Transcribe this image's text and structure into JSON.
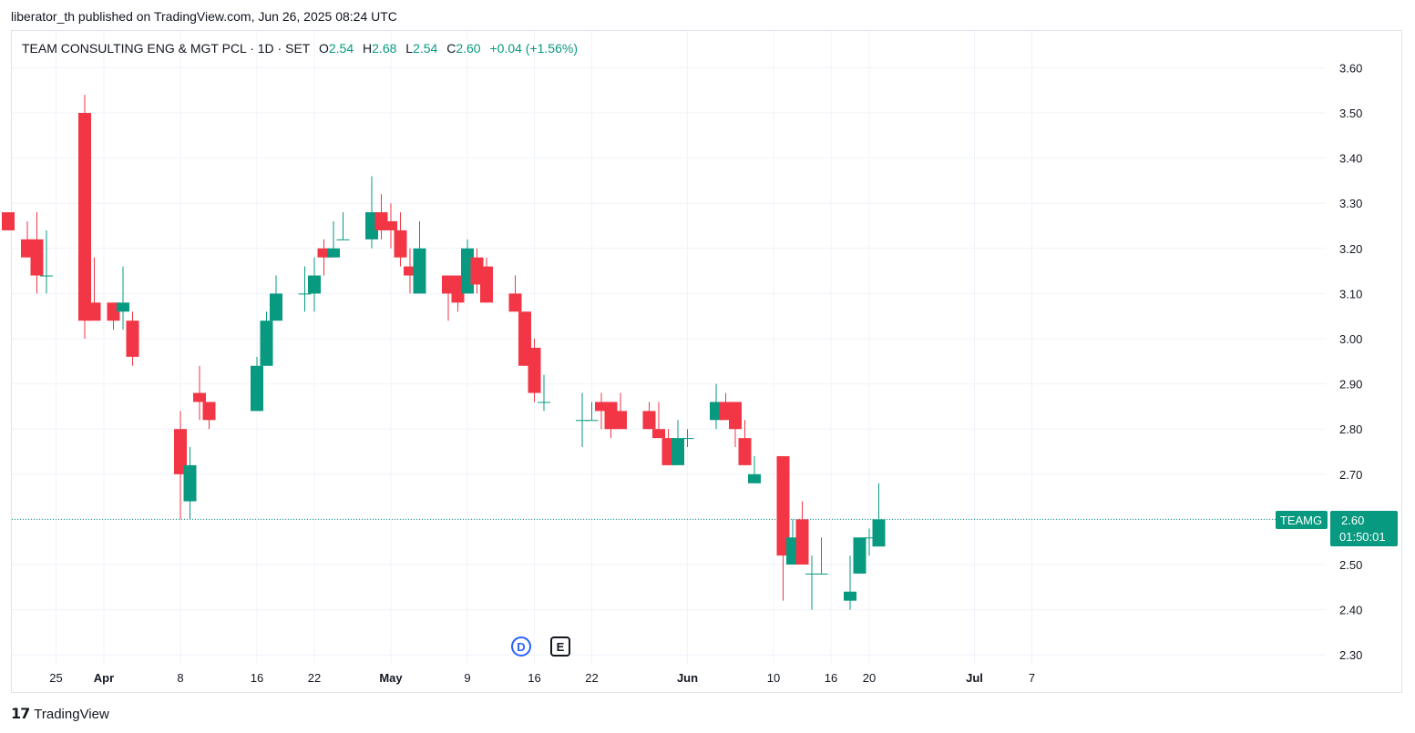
{
  "header": {
    "published": "liberator_th published on TradingView.com, Jun 26, 2025 08:24 UTC"
  },
  "legend": {
    "symbol": "TEAM CONSULTING ENG & MGT PCL · 1D · SET",
    "o_label": "O",
    "o_value": "2.54",
    "h_label": "H",
    "h_value": "2.68",
    "l_label": "L",
    "l_value": "2.54",
    "c_label": "C",
    "c_value": "2.60",
    "change": "+0.04 (+1.56%)"
  },
  "price_tag": {
    "ticker": "TEAMG",
    "price": "2.60",
    "countdown": "01:50:01"
  },
  "events": {
    "dividend": "D",
    "earnings": "E"
  },
  "footer": {
    "brand": "TradingView"
  },
  "colors": {
    "up": "#089981",
    "down": "#f23645",
    "grid": "#f0f3fa",
    "text": "#131722",
    "last_price_line": "#089981"
  },
  "chart_data": {
    "type": "candlestick",
    "ylim": [
      2.28,
      3.66
    ],
    "y_ticks": [
      "3.60",
      "3.50",
      "3.40",
      "3.30",
      "3.20",
      "3.10",
      "3.00",
      "2.90",
      "2.80",
      "2.70",
      "2.60",
      "2.50",
      "2.40",
      "2.30"
    ],
    "x_ticks": [
      {
        "label": "25",
        "day": -5,
        "bold": false
      },
      {
        "label": "Apr",
        "day": 0,
        "bold": true
      },
      {
        "label": "8",
        "day": 8,
        "bold": false
      },
      {
        "label": "16",
        "day": 16,
        "bold": false
      },
      {
        "label": "22",
        "day": 22,
        "bold": false
      },
      {
        "label": "May",
        "day": 30,
        "bold": true
      },
      {
        "label": "9",
        "day": 38,
        "bold": false
      },
      {
        "label": "16",
        "day": 45,
        "bold": false
      },
      {
        "label": "22",
        "day": 51,
        "bold": false
      },
      {
        "label": "Jun",
        "day": 61,
        "bold": true
      },
      {
        "label": "10",
        "day": 70,
        "bold": false
      },
      {
        "label": "16",
        "day": 76,
        "bold": false
      },
      {
        "label": "20",
        "day": 80,
        "bold": false
      },
      {
        "label": "Jul",
        "day": 91,
        "bold": true
      },
      {
        "label": "7",
        "day": 97,
        "bold": false
      }
    ],
    "last_price": 2.6,
    "candles": [
      {
        "day": -10,
        "o": 3.28,
        "h": 3.28,
        "l": 3.24,
        "c": 3.24
      },
      {
        "day": -8,
        "o": 3.22,
        "h": 3.26,
        "l": 3.18,
        "c": 3.18
      },
      {
        "day": -7,
        "o": 3.22,
        "h": 3.28,
        "l": 3.1,
        "c": 3.14
      },
      {
        "day": -6,
        "o": 3.14,
        "h": 3.24,
        "l": 3.1,
        "c": 3.14
      },
      {
        "day": -2,
        "o": 3.5,
        "h": 3.54,
        "l": 3.0,
        "c": 3.04
      },
      {
        "day": -1,
        "o": 3.08,
        "h": 3.18,
        "l": 3.04,
        "c": 3.04
      },
      {
        "day": 1,
        "o": 3.08,
        "h": 3.08,
        "l": 3.02,
        "c": 3.04
      },
      {
        "day": 2,
        "o": 3.06,
        "h": 3.16,
        "l": 3.02,
        "c": 3.08
      },
      {
        "day": 3,
        "o": 3.04,
        "h": 3.06,
        "l": 2.94,
        "c": 2.96
      },
      {
        "day": 8,
        "o": 2.8,
        "h": 2.84,
        "l": 2.6,
        "c": 2.7
      },
      {
        "day": 9,
        "o": 2.64,
        "h": 2.76,
        "l": 2.6,
        "c": 2.72
      },
      {
        "day": 10,
        "o": 2.88,
        "h": 2.94,
        "l": 2.82,
        "c": 2.86
      },
      {
        "day": 11,
        "o": 2.86,
        "h": 2.86,
        "l": 2.8,
        "c": 2.82
      },
      {
        "day": 16,
        "o": 2.84,
        "h": 2.96,
        "l": 2.84,
        "c": 2.94
      },
      {
        "day": 17,
        "o": 2.94,
        "h": 3.06,
        "l": 2.94,
        "c": 3.04
      },
      {
        "day": 18,
        "o": 3.04,
        "h": 3.14,
        "l": 3.04,
        "c": 3.1
      },
      {
        "day": 21,
        "o": 3.1,
        "h": 3.16,
        "l": 3.06,
        "c": 3.1
      },
      {
        "day": 22,
        "o": 3.1,
        "h": 3.18,
        "l": 3.06,
        "c": 3.14
      },
      {
        "day": 23,
        "o": 3.2,
        "h": 3.22,
        "l": 3.14,
        "c": 3.18
      },
      {
        "day": 24,
        "o": 3.18,
        "h": 3.26,
        "l": 3.18,
        "c": 3.2
      },
      {
        "day": 25,
        "o": 3.22,
        "h": 3.28,
        "l": 3.22,
        "c": 3.22
      },
      {
        "day": 28,
        "o": 3.22,
        "h": 3.36,
        "l": 3.2,
        "c": 3.28
      },
      {
        "day": 29,
        "o": 3.28,
        "h": 3.32,
        "l": 3.22,
        "c": 3.24
      },
      {
        "day": 30,
        "o": 3.26,
        "h": 3.3,
        "l": 3.2,
        "c": 3.24
      },
      {
        "day": 31,
        "o": 3.24,
        "h": 3.28,
        "l": 3.16,
        "c": 3.18
      },
      {
        "day": 32,
        "o": 3.16,
        "h": 3.2,
        "l": 3.1,
        "c": 3.14
      },
      {
        "day": 33,
        "o": 3.1,
        "h": 3.26,
        "l": 3.1,
        "c": 3.2
      },
      {
        "day": 36,
        "o": 3.14,
        "h": 3.14,
        "l": 3.04,
        "c": 3.1
      },
      {
        "day": 37,
        "o": 3.14,
        "h": 3.14,
        "l": 3.06,
        "c": 3.08
      },
      {
        "day": 38,
        "o": 3.1,
        "h": 3.22,
        "l": 3.1,
        "c": 3.2
      },
      {
        "day": 39,
        "o": 3.18,
        "h": 3.2,
        "l": 3.1,
        "c": 3.12
      },
      {
        "day": 40,
        "o": 3.16,
        "h": 3.18,
        "l": 3.08,
        "c": 3.08
      },
      {
        "day": 43,
        "o": 3.1,
        "h": 3.14,
        "l": 3.06,
        "c": 3.06
      },
      {
        "day": 44,
        "o": 3.06,
        "h": 3.06,
        "l": 2.94,
        "c": 2.94
      },
      {
        "day": 45,
        "o": 2.98,
        "h": 3.0,
        "l": 2.86,
        "c": 2.88
      },
      {
        "day": 46,
        "o": 2.86,
        "h": 2.92,
        "l": 2.84,
        "c": 2.86
      },
      {
        "day": 50,
        "o": 2.82,
        "h": 2.88,
        "l": 2.76,
        "c": 2.82
      },
      {
        "day": 51,
        "o": 2.82,
        "h": 2.86,
        "l": 2.82,
        "c": 2.82
      },
      {
        "day": 52,
        "o": 2.86,
        "h": 2.88,
        "l": 2.8,
        "c": 2.84
      },
      {
        "day": 53,
        "o": 2.86,
        "h": 2.86,
        "l": 2.78,
        "c": 2.8
      },
      {
        "day": 54,
        "o": 2.84,
        "h": 2.88,
        "l": 2.8,
        "c": 2.8
      },
      {
        "day": 57,
        "o": 2.84,
        "h": 2.86,
        "l": 2.8,
        "c": 2.8
      },
      {
        "day": 58,
        "o": 2.8,
        "h": 2.86,
        "l": 2.78,
        "c": 2.78
      },
      {
        "day": 59,
        "o": 2.78,
        "h": 2.8,
        "l": 2.72,
        "c": 2.72
      },
      {
        "day": 60,
        "o": 2.72,
        "h": 2.82,
        "l": 2.72,
        "c": 2.78
      },
      {
        "day": 61,
        "o": 2.78,
        "h": 2.8,
        "l": 2.76,
        "c": 2.78
      },
      {
        "day": 64,
        "o": 2.82,
        "h": 2.9,
        "l": 2.8,
        "c": 2.86
      },
      {
        "day": 65,
        "o": 2.86,
        "h": 2.88,
        "l": 2.82,
        "c": 2.82
      },
      {
        "day": 66,
        "o": 2.86,
        "h": 2.86,
        "l": 2.76,
        "c": 2.8
      },
      {
        "day": 67,
        "o": 2.78,
        "h": 2.82,
        "l": 2.72,
        "c": 2.72
      },
      {
        "day": 68,
        "o": 2.68,
        "h": 2.74,
        "l": 2.68,
        "c": 2.7
      },
      {
        "day": 71,
        "o": 2.74,
        "h": 2.74,
        "l": 2.42,
        "c": 2.52
      },
      {
        "day": 72,
        "o": 2.5,
        "h": 2.6,
        "l": 2.5,
        "c": 2.56
      },
      {
        "day": 73,
        "o": 2.6,
        "h": 2.64,
        "l": 2.5,
        "c": 2.5
      },
      {
        "day": 74,
        "o": 2.48,
        "h": 2.52,
        "l": 2.4,
        "c": 2.48
      },
      {
        "day": 75,
        "o": 2.48,
        "h": 2.56,
        "l": 2.48,
        "c": 2.48
      },
      {
        "day": 78,
        "o": 2.42,
        "h": 2.52,
        "l": 2.4,
        "c": 2.44
      },
      {
        "day": 79,
        "o": 2.48,
        "h": 2.56,
        "l": 2.48,
        "c": 2.56
      },
      {
        "day": 80,
        "o": 2.56,
        "h": 2.58,
        "l": 2.52,
        "c": 2.56
      },
      {
        "day": 81,
        "o": 2.54,
        "h": 2.68,
        "l": 2.54,
        "c": 2.6
      }
    ]
  }
}
